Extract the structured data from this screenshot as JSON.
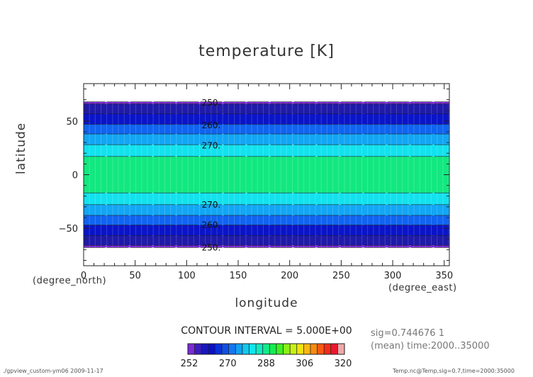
{
  "chart_data": {
    "type": "heatmap",
    "title": "temperature [K]",
    "xlabel": "longitude",
    "ylabel": "latitude",
    "x_unit": "(degree_east)",
    "y_unit": "(degree_north)",
    "xlim": [
      0,
      355
    ],
    "ylim": [
      -85,
      85
    ],
    "x_ticks": [
      0,
      50,
      100,
      150,
      200,
      250,
      300,
      350
    ],
    "y_ticks": [
      -50,
      0,
      50
    ],
    "y_tick_labels": [
      "−50",
      "0",
      "50"
    ],
    "data_lat_range": [
      -68,
      68
    ],
    "contour_interval_text": "CONTOUR INTERVAL = 5.000E+00",
    "contour_labels": [
      {
        "text": "250.",
        "lat": 67
      },
      {
        "text": "260.",
        "lat": 46
      },
      {
        "text": "270.",
        "lat": 27
      },
      {
        "text": "270.",
        "lat": -28
      },
      {
        "text": "260.",
        "lat": -47
      },
      {
        "text": "250.",
        "lat": -68
      }
    ],
    "bands": [
      {
        "lat_max": 68,
        "lat_min": 66,
        "color": "#7b2ad8"
      },
      {
        "lat_max": 66,
        "lat_min": 57,
        "color": "#1f1aa8"
      },
      {
        "lat_max": 57,
        "lat_min": 47,
        "color": "#0a14c8"
      },
      {
        "lat_max": 47,
        "lat_min": 38,
        "color": "#1064f0"
      },
      {
        "lat_max": 38,
        "lat_min": 28,
        "color": "#12a6f4"
      },
      {
        "lat_max": 28,
        "lat_min": 17,
        "color": "#12e2ee"
      },
      {
        "lat_max": 17,
        "lat_min": -17,
        "color": "#12e880"
      },
      {
        "lat_max": -17,
        "lat_min": -28,
        "color": "#12e2ee"
      },
      {
        "lat_max": -28,
        "lat_min": -38,
        "color": "#12a6f4"
      },
      {
        "lat_max": -38,
        "lat_min": -47,
        "color": "#1064f0"
      },
      {
        "lat_max": -47,
        "lat_min": -57,
        "color": "#0a14c8"
      },
      {
        "lat_max": -57,
        "lat_min": -66,
        "color": "#1f1aa8"
      },
      {
        "lat_max": -66,
        "lat_min": -68,
        "color": "#7b2ad8"
      }
    ],
    "colorbar": {
      "labels": [
        "252",
        "270",
        "288",
        "306",
        "320"
      ],
      "colors": [
        "#7b2ad8",
        "#3a1cc0",
        "#1a18b8",
        "#0a10c8",
        "#0a30d8",
        "#1050e8",
        "#1278f2",
        "#12a0f4",
        "#12c8f0",
        "#12e6ee",
        "#12eac0",
        "#12ec8c",
        "#14ee50",
        "#40f020",
        "#8cf018",
        "#c8f012",
        "#f0e412",
        "#f8b812",
        "#f88a12",
        "#f85a12",
        "#f42c18",
        "#e81830",
        "#f0a8a8"
      ]
    }
  },
  "info": {
    "line1": "sig=0.744676 1",
    "line2": "(mean) time:2000..35000"
  },
  "footer": {
    "left": "./gpview_custom-ym06  2009-11-17",
    "right": "Temp.nc@Temp,sig=0.7,time=2000:35000"
  }
}
